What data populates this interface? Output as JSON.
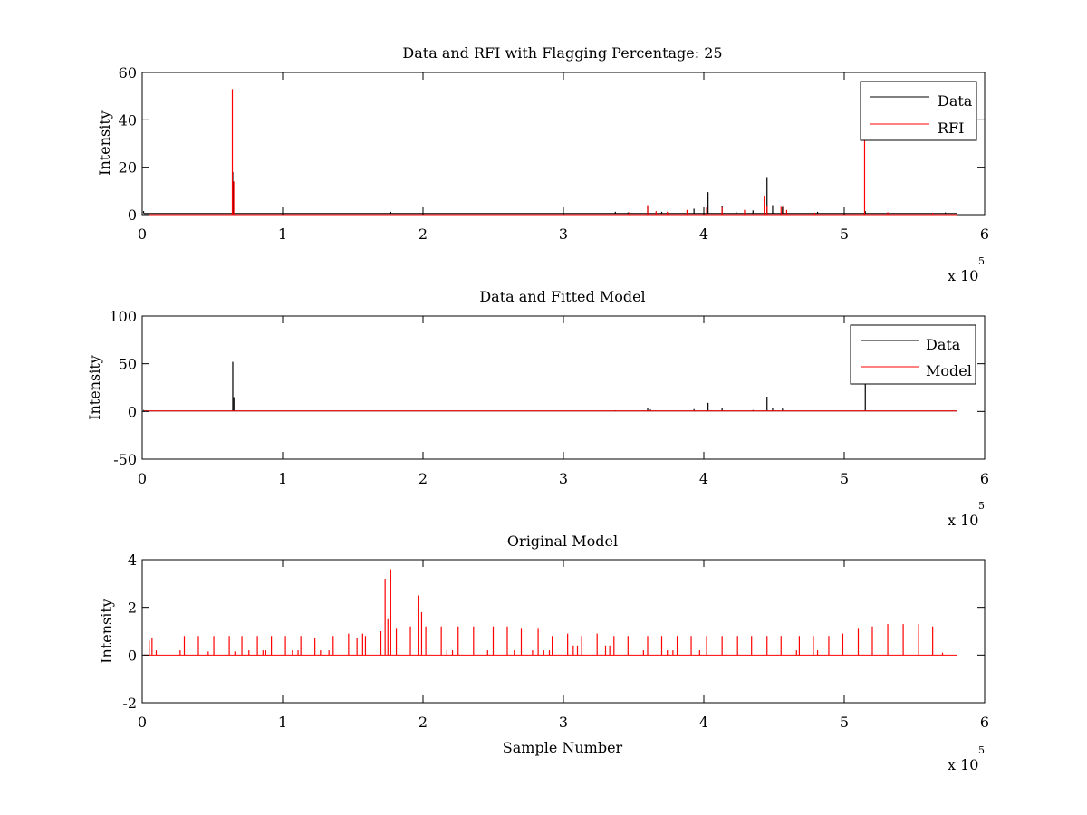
{
  "chart_data": [
    {
      "type": "line",
      "title": "Data and RFI with Flagging Percentage: 25",
      "xlabel": "",
      "ylabel": "Intensity",
      "xlim": [
        0,
        600000
      ],
      "ylim": [
        0,
        60
      ],
      "x_ticks": [
        0,
        1,
        2,
        3,
        4,
        5,
        6
      ],
      "y_ticks": [
        0,
        20,
        40,
        60
      ],
      "x_exponent": {
        "base": "x 10",
        "power": "5"
      },
      "legend": {
        "location": "top-right",
        "entries": [
          "Data",
          "RFI"
        ]
      },
      "series": [
        {
          "name": "Data",
          "color": "#000000",
          "baseline": 0.5,
          "spikes": [
            [
              1000,
              1.5
            ],
            [
              17000,
              0.5
            ],
            [
              64500,
              18
            ],
            [
              177000,
              1.2
            ],
            [
              337000,
              1.2
            ],
            [
              346000,
              0.9
            ],
            [
              360000,
              3.8
            ],
            [
              370000,
              1.2
            ],
            [
              393000,
              2.5
            ],
            [
              403000,
              9.5
            ],
            [
              413000,
              3.5
            ],
            [
              423000,
              1.2
            ],
            [
              435000,
              1.8
            ],
            [
              445000,
              15.5
            ],
            [
              449000,
              4
            ],
            [
              456000,
              3.2
            ],
            [
              481000,
              1.2
            ],
            [
              515000,
              1.5
            ],
            [
              572000,
              0.9
            ],
            [
              580000,
              0.6
            ]
          ]
        },
        {
          "name": "RFI",
          "color": "#ff0000",
          "baseline": 0,
          "spikes": [
            [
              64200,
              53
            ],
            [
              65200,
              14
            ],
            [
              347000,
              1
            ],
            [
              360000,
              4
            ],
            [
              366000,
              1.5
            ],
            [
              374000,
              1.2
            ],
            [
              388000,
              2
            ],
            [
              402000,
              3
            ],
            [
              413000,
              3
            ],
            [
              429000,
              2
            ],
            [
              443000,
              8
            ],
            [
              445000,
              3.6
            ],
            [
              455000,
              3.3
            ],
            [
              457000,
              4
            ],
            [
              459000,
              2
            ],
            [
              479000,
              0.8
            ],
            [
              514500,
              32
            ],
            [
              531000,
              1
            ],
            [
              563000,
              0.7
            ]
          ]
        }
      ]
    },
    {
      "type": "line",
      "title": "Data and Fitted Model",
      "xlabel": "",
      "ylabel": "Intensity",
      "xlim": [
        0,
        600000
      ],
      "ylim": [
        -50,
        100
      ],
      "x_ticks": [
        0,
        1,
        2,
        3,
        4,
        5,
        6
      ],
      "y_ticks": [
        -50,
        0,
        50,
        100
      ],
      "x_exponent": {
        "base": "x 10",
        "power": "5"
      },
      "legend": {
        "location": "top-right",
        "entries": [
          "Data",
          "Model"
        ]
      },
      "series": [
        {
          "name": "Data",
          "color": "#000000",
          "baseline": 0.5,
          "spikes": [
            [
              1000,
              1.5
            ],
            [
              64500,
              52
            ],
            [
              65300,
              15
            ],
            [
              337000,
              1.2
            ],
            [
              360000,
              4
            ],
            [
              362000,
              2
            ],
            [
              393000,
              2.5
            ],
            [
              403000,
              9
            ],
            [
              413000,
              3.5
            ],
            [
              435000,
              1.5
            ],
            [
              445000,
              15.5
            ],
            [
              449000,
              4
            ],
            [
              456000,
              3
            ],
            [
              515000,
              30
            ],
            [
              572000,
              0.8
            ]
          ]
        },
        {
          "name": "Model",
          "color": "#ff0000",
          "baseline": 0.5,
          "spikes": []
        }
      ]
    },
    {
      "type": "line",
      "title": "Original Model",
      "xlabel": "Sample Number",
      "ylabel": "Intensity",
      "xlim": [
        0,
        600000
      ],
      "ylim": [
        -2,
        4
      ],
      "x_ticks": [
        0,
        1,
        2,
        3,
        4,
        5,
        6
      ],
      "y_ticks": [
        -2,
        0,
        2,
        4
      ],
      "x_exponent": {
        "base": "x 10",
        "power": "5"
      },
      "series": [
        {
          "name": "Model",
          "color": "#ff0000",
          "baseline": 0,
          "spikes": [
            [
              5000,
              0.6
            ],
            [
              7000,
              0.7
            ],
            [
              10000,
              0.2
            ],
            [
              27000,
              0.2
            ],
            [
              30000,
              0.8
            ],
            [
              40000,
              0.8
            ],
            [
              47000,
              0.15
            ],
            [
              51000,
              0.8
            ],
            [
              62000,
              0.8
            ],
            [
              66000,
              0.15
            ],
            [
              71000,
              0.8
            ],
            [
              76000,
              0.2
            ],
            [
              82000,
              0.8
            ],
            [
              86000,
              0.2
            ],
            [
              88000,
              0.2
            ],
            [
              92000,
              0.8
            ],
            [
              102000,
              0.8
            ],
            [
              107000,
              0.2
            ],
            [
              111000,
              0.2
            ],
            [
              113000,
              0.8
            ],
            [
              123000,
              0.7
            ],
            [
              127000,
              0.2
            ],
            [
              133000,
              0.2
            ],
            [
              136000,
              0.8
            ],
            [
              147000,
              0.9
            ],
            [
              153000,
              0.7
            ],
            [
              157000,
              0.9
            ],
            [
              159000,
              0.8
            ],
            [
              170000,
              1.0
            ],
            [
              173000,
              3.2
            ],
            [
              175000,
              1.5
            ],
            [
              177000,
              3.6
            ],
            [
              181000,
              1.1
            ],
            [
              191000,
              1.2
            ],
            [
              197000,
              2.5
            ],
            [
              199000,
              1.8
            ],
            [
              202000,
              1.2
            ],
            [
              213000,
              1.2
            ],
            [
              217000,
              0.2
            ],
            [
              221000,
              0.2
            ],
            [
              225000,
              1.2
            ],
            [
              236000,
              1.2
            ],
            [
              246000,
              0.2
            ],
            [
              250000,
              1.2
            ],
            [
              260000,
              1.2
            ],
            [
              265000,
              0.2
            ],
            [
              270000,
              1.1
            ],
            [
              278000,
              0.2
            ],
            [
              282000,
              1.1
            ],
            [
              286000,
              0.2
            ],
            [
              290000,
              0.2
            ],
            [
              292000,
              0.8
            ],
            [
              303000,
              0.9
            ],
            [
              307000,
              0.4
            ],
            [
              310000,
              0.4
            ],
            [
              313000,
              0.8
            ],
            [
              324000,
              0.9
            ],
            [
              330000,
              0.4
            ],
            [
              333000,
              0.4
            ],
            [
              336000,
              0.8
            ],
            [
              346000,
              0.8
            ],
            [
              357000,
              0.2
            ],
            [
              360000,
              0.8
            ],
            [
              370000,
              0.8
            ],
            [
              374000,
              0.2
            ],
            [
              378000,
              0.2
            ],
            [
              381000,
              0.8
            ],
            [
              391000,
              0.8
            ],
            [
              397000,
              0.2
            ],
            [
              402000,
              0.8
            ],
            [
              413000,
              0.8
            ],
            [
              424000,
              0.8
            ],
            [
              434000,
              0.8
            ],
            [
              445000,
              0.8
            ],
            [
              455000,
              0.8
            ],
            [
              466000,
              0.2
            ],
            [
              468000,
              0.8
            ],
            [
              478000,
              0.8
            ],
            [
              481000,
              0.2
            ],
            [
              489000,
              0.8
            ],
            [
              499000,
              0.9
            ],
            [
              510000,
              1.1
            ],
            [
              520000,
              1.2
            ],
            [
              531000,
              1.3
            ],
            [
              542000,
              1.3
            ],
            [
              553000,
              1.3
            ],
            [
              563000,
              1.2
            ],
            [
              570000,
              0.1
            ]
          ]
        }
      ]
    }
  ]
}
